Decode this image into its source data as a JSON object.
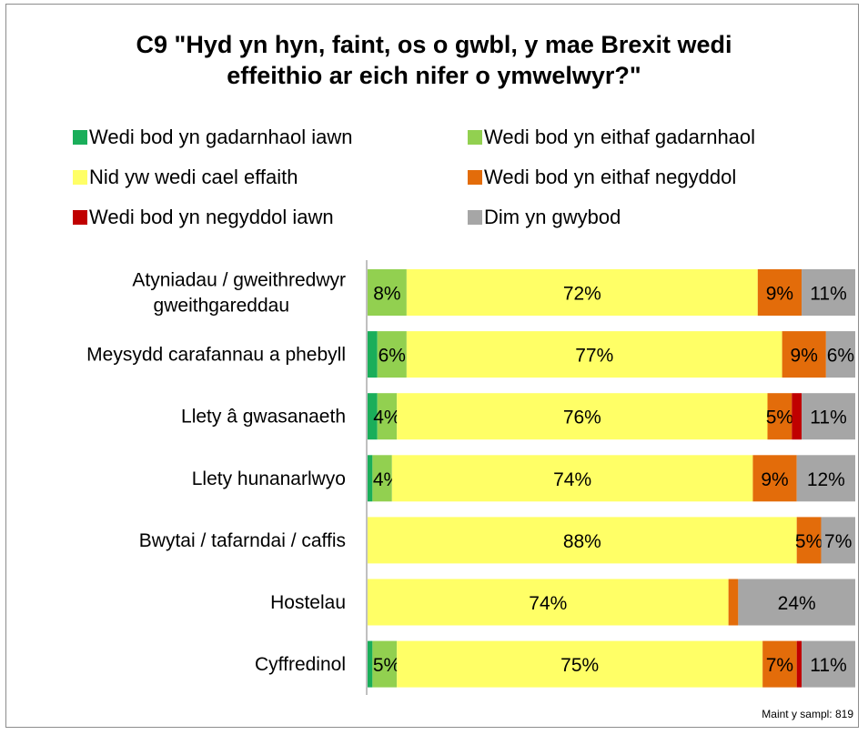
{
  "title_line1": "C9 \"Hyd yn hyn, faint, os o gwbl, y mae Brexit wedi",
  "title_line2": "effeithio ar eich nifer o ymwelwyr?\"",
  "sample_note": "Maint y sampl: 819",
  "chart_data": {
    "type": "bar",
    "orientation": "horizontal",
    "stacked": true,
    "title": "C9 \"Hyd yn hyn, faint, os o gwbl, y mae Brexit wedi effeithio ar eich nifer o ymwelwyr?\"",
    "legend_position": "top",
    "categories": [
      "Atyniadau / gweithredwyr gweithgareddau",
      "Meysydd carafannau a phebyll",
      "Llety â gwasanaeth",
      "Llety hunanarlwyo",
      "Bwytai / tafarndai / caffis",
      "Hostelau",
      "Cyffredinol"
    ],
    "category_lines": [
      [
        "Atyniadau / gweithredwyr",
        "gweithgareddau"
      ],
      [
        "Meysydd carafannau a phebyll"
      ],
      [
        "Llety â gwasanaeth"
      ],
      [
        "Llety hunanarlwyo"
      ],
      [
        "Bwytai / tafarndai / caffis"
      ],
      [
        "Hostelau"
      ],
      [
        "Cyffredinol"
      ]
    ],
    "series": [
      {
        "name": "Wedi bod yn gadarnhaol iawn",
        "color": "#1aae5a",
        "values": [
          0,
          2,
          2,
          1,
          0,
          0,
          1
        ],
        "labels": [
          "",
          "",
          "",
          "",
          "",
          "",
          ""
        ]
      },
      {
        "name": "Wedi bod yn eithaf gadarnhaol",
        "color": "#92d050",
        "values": [
          8,
          6,
          4,
          4,
          0,
          0,
          5
        ],
        "labels": [
          "8%",
          "6%",
          "4%",
          "4%",
          "",
          "",
          "5%"
        ]
      },
      {
        "name": "Nid yw wedi cael effaith",
        "color": "#ffff66",
        "values": [
          72,
          77,
          76,
          74,
          88,
          74,
          75
        ],
        "labels": [
          "72%",
          "77%",
          "76%",
          "74%",
          "88%",
          "74%",
          "75%"
        ]
      },
      {
        "name": "Wedi bod yn eithaf negyddol",
        "color": "#e36c0a",
        "values": [
          9,
          9,
          5,
          9,
          5,
          2,
          7
        ],
        "labels": [
          "9%",
          "9%",
          "5%",
          "9%",
          "5%",
          "",
          "7%"
        ]
      },
      {
        "name": "Wedi bod yn negyddol iawn",
        "color": "#c00000",
        "values": [
          0,
          0,
          2,
          0,
          0,
          0,
          1
        ],
        "labels": [
          "",
          "",
          "",
          "",
          "",
          "",
          ""
        ]
      },
      {
        "name": "Dim yn gwybod",
        "color": "#a6a6a6",
        "values": [
          11,
          6,
          11,
          12,
          7,
          24,
          11
        ],
        "labels": [
          "11%",
          "6%",
          "11%",
          "12%",
          "7%",
          "24%",
          "11%"
        ]
      }
    ],
    "xlim": [
      0,
      100
    ]
  }
}
